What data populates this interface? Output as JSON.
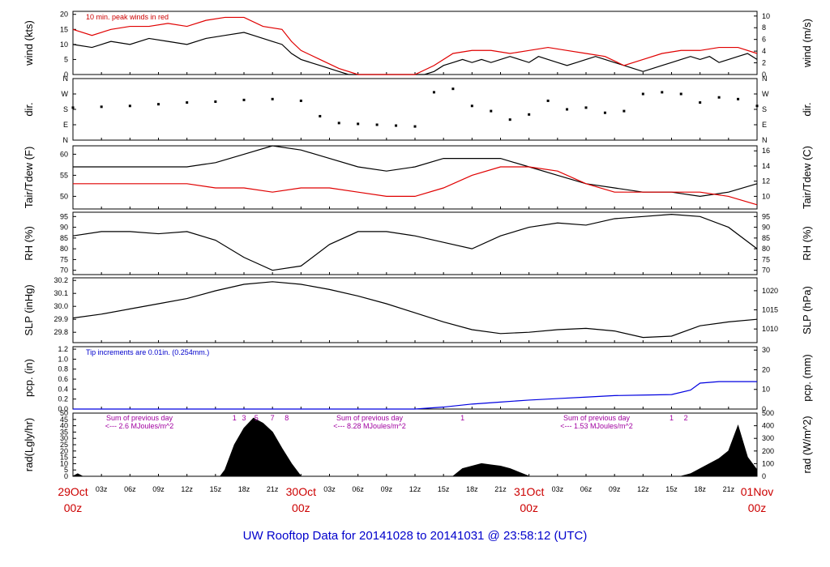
{
  "title": "UW Rooftop Data for 20141028  to  20141031 @ 23:58:12  (UTC)",
  "colors": {
    "frame": "#000000",
    "red": "#e00000",
    "blue": "#0000e0",
    "purple": "#a000a0",
    "fill": "#000000"
  },
  "chart_data": [
    {
      "id": "wind",
      "type": "line",
      "ylabel": "wind (kts)",
      "ylabel_right": "wind (m/s)",
      "ylim": [
        0,
        21
      ],
      "yticks": [
        0,
        5,
        10,
        15,
        20
      ],
      "yticks_right": [
        0,
        2,
        4,
        6,
        8,
        10
      ],
      "right_scale": 0.5144,
      "annotation": "10 min. peak winds in red",
      "series": [
        {
          "name": "wind",
          "color": "#000000",
          "x": [
            0,
            2,
            4,
            6,
            8,
            10,
            12,
            14,
            16,
            18,
            19,
            20,
            21,
            22,
            23,
            24,
            25,
            26,
            27,
            28,
            29,
            30,
            31,
            32,
            33,
            34,
            35,
            36,
            37,
            38,
            39,
            40,
            41,
            42,
            43,
            44,
            45,
            46,
            47,
            48,
            49,
            50,
            51,
            52,
            53,
            54,
            55,
            56,
            57,
            58,
            59,
            60,
            61,
            62,
            63,
            64,
            65,
            66,
            67,
            68,
            69,
            70,
            71,
            72
          ],
          "y": [
            10,
            9,
            11,
            10,
            12,
            11,
            10,
            12,
            13,
            14,
            13,
            12,
            11,
            10,
            7,
            5,
            4,
            3,
            2,
            1,
            0,
            0,
            0,
            0,
            0,
            0,
            0,
            0,
            0,
            1,
            3,
            4,
            5,
            4,
            5,
            4,
            5,
            6,
            5,
            4,
            6,
            5,
            4,
            3,
            4,
            5,
            6,
            5,
            4,
            3,
            2,
            1,
            2,
            3,
            4,
            5,
            6,
            5,
            6,
            4,
            5,
            6,
            7,
            5
          ]
        },
        {
          "name": "peak",
          "color": "#e00000",
          "x": [
            0,
            2,
            4,
            6,
            8,
            10,
            12,
            14,
            16,
            18,
            20,
            22,
            23,
            24,
            26,
            28,
            30,
            32,
            34,
            36,
            38,
            40,
            42,
            44,
            46,
            48,
            50,
            52,
            54,
            56,
            58,
            60,
            62,
            64,
            66,
            68,
            70,
            72
          ],
          "y": [
            15,
            13,
            15,
            16,
            16,
            17,
            16,
            18,
            19,
            19,
            16,
            15,
            11,
            8,
            5,
            2,
            0,
            0,
            0,
            0,
            3,
            7,
            8,
            8,
            7,
            8,
            9,
            8,
            7,
            6,
            3,
            5,
            7,
            8,
            8,
            9,
            9,
            7
          ]
        }
      ]
    },
    {
      "id": "dir",
      "type": "scatter",
      "ylabel": "dir.",
      "ylabel_right": "dir.",
      "ylim": [
        0,
        360
      ],
      "ytick_labels": [
        "N",
        "E",
        "S",
        "W",
        "N"
      ],
      "series": [
        {
          "name": "direction",
          "color": "#000000",
          "x": [
            0,
            3,
            6,
            9,
            12,
            15,
            18,
            21,
            24,
            26,
            28,
            30,
            32,
            34,
            36,
            38,
            40,
            42,
            44,
            46,
            48,
            50,
            52,
            54,
            56,
            58,
            60,
            62,
            64,
            66,
            68,
            70,
            72
          ],
          "y": [
            190,
            195,
            200,
            210,
            220,
            225,
            235,
            240,
            230,
            140,
            100,
            95,
            90,
            85,
            80,
            280,
            300,
            200,
            170,
            120,
            150,
            230,
            180,
            190,
            160,
            170,
            270,
            280,
            270,
            220,
            250,
            240,
            200
          ]
        }
      ]
    },
    {
      "id": "temp",
      "type": "line",
      "ylabel": "Tair/Tdew (F)",
      "ylabel_right": "Tair/Tdew (C)",
      "ylim": [
        47,
        62
      ],
      "yticks": [
        50,
        55,
        60
      ],
      "yticks_right": [
        10,
        12,
        14,
        16
      ],
      "series": [
        {
          "name": "Tair",
          "color": "#000000",
          "x": [
            0,
            3,
            6,
            9,
            12,
            15,
            18,
            21,
            24,
            27,
            30,
            33,
            36,
            39,
            42,
            45,
            48,
            51,
            54,
            57,
            60,
            63,
            66,
            69,
            72
          ],
          "y": [
            57,
            57,
            57,
            57,
            57,
            58,
            60,
            62,
            61,
            59,
            57,
            56,
            57,
            59,
            59,
            59,
            57,
            55,
            53,
            52,
            51,
            51,
            50,
            51,
            53
          ]
        },
        {
          "name": "Tdew",
          "color": "#e00000",
          "x": [
            0,
            3,
            6,
            9,
            12,
            15,
            18,
            21,
            24,
            27,
            30,
            33,
            36,
            39,
            42,
            45,
            48,
            51,
            54,
            57,
            60,
            63,
            66,
            69,
            72
          ],
          "y": [
            53,
            53,
            53,
            53,
            53,
            52,
            52,
            51,
            52,
            52,
            51,
            50,
            50,
            52,
            55,
            57,
            57,
            56,
            53,
            51,
            51,
            51,
            51,
            50,
            48
          ]
        }
      ]
    },
    {
      "id": "rh",
      "type": "line",
      "ylabel": "RH (%)",
      "ylabel_right": "RH (%)",
      "ylim": [
        68,
        97
      ],
      "yticks": [
        70,
        75,
        80,
        85,
        90,
        95
      ],
      "series": [
        {
          "name": "RH",
          "color": "#000000",
          "x": [
            0,
            3,
            6,
            9,
            12,
            15,
            18,
            21,
            24,
            27,
            30,
            33,
            36,
            39,
            42,
            45,
            48,
            51,
            54,
            57,
            60,
            63,
            66,
            69,
            72
          ],
          "y": [
            86,
            88,
            88,
            87,
            88,
            84,
            76,
            70,
            72,
            82,
            88,
            88,
            86,
            83,
            80,
            86,
            90,
            92,
            91,
            94,
            95,
            96,
            95,
            90,
            80
          ]
        }
      ]
    },
    {
      "id": "slp",
      "type": "line",
      "ylabel": "SLP (inHg)",
      "ylabel_right": "SLP (hPa)",
      "ylim": [
        29.72,
        30.22
      ],
      "yticks": [
        29.8,
        29.9,
        30.0,
        30.1,
        30.2
      ],
      "yticks_right": [
        1010,
        1015,
        1020
      ],
      "series": [
        {
          "name": "SLP",
          "color": "#000000",
          "x": [
            0,
            3,
            6,
            9,
            12,
            15,
            18,
            21,
            24,
            27,
            30,
            33,
            36,
            39,
            42,
            45,
            48,
            51,
            54,
            57,
            60,
            63,
            66,
            69,
            72
          ],
          "y": [
            29.91,
            29.94,
            29.98,
            30.02,
            30.06,
            30.12,
            30.17,
            30.19,
            30.17,
            30.13,
            30.08,
            30.02,
            29.95,
            29.88,
            29.82,
            29.79,
            29.8,
            29.82,
            29.83,
            29.81,
            29.76,
            29.77,
            29.85,
            29.88,
            29.9
          ]
        }
      ]
    },
    {
      "id": "pcp",
      "type": "line",
      "ylabel": "pcp. (in)",
      "ylabel_right": "pcp. (mm)",
      "ylim": [
        0,
        1.25
      ],
      "yticks": [
        0,
        0.2,
        0.4,
        0.6,
        0.8,
        1.0,
        1.2
      ],
      "yticks_right": [
        0,
        10,
        20,
        30
      ],
      "annotation": "Tip increments are 0.01in. (0.254mm.)",
      "series": [
        {
          "name": "pcp",
          "color": "#0000e0",
          "x": [
            0,
            36,
            39,
            42,
            45,
            48,
            51,
            54,
            57,
            60,
            63,
            65,
            66,
            68,
            72
          ],
          "y": [
            0,
            0,
            0.04,
            0.1,
            0.14,
            0.18,
            0.21,
            0.24,
            0.27,
            0.28,
            0.29,
            0.38,
            0.52,
            0.55,
            0.55
          ]
        }
      ]
    },
    {
      "id": "rad",
      "type": "area",
      "ylabel": "rad(Lgly/hr)",
      "ylabel_right": "rad (W/m^2)",
      "ylim": [
        0,
        50
      ],
      "yticks": [
        0,
        5,
        10,
        15,
        20,
        25,
        30,
        35,
        40,
        45,
        50
      ],
      "yticks_right": [
        0,
        100,
        200,
        300,
        400,
        500
      ],
      "hour_marks": [
        "1",
        "3",
        "5",
        "7",
        "8",
        "1",
        "1",
        "2"
      ],
      "daily_sums": [
        {
          "label": "Sum of previous day",
          "value": "<--- 2.6 MJoules/m^2"
        },
        {
          "label": "Sum of previous day",
          "value": "<--- 8.28 MJoules/m^2"
        },
        {
          "label": "Sum of previous day",
          "value": "<--- 1.53 MJoules/m^2"
        }
      ],
      "series": [
        {
          "name": "radiation",
          "color": "#000000",
          "x": [
            0,
            0.5,
            1,
            15.5,
            16,
            17,
            18,
            19,
            20,
            21,
            22,
            23,
            24,
            40,
            41,
            42,
            43,
            44,
            45,
            46,
            47,
            48,
            64,
            65,
            66,
            67,
            68,
            69,
            70,
            71,
            72
          ],
          "y": [
            0,
            2,
            0,
            0,
            5,
            25,
            38,
            46,
            42,
            35,
            22,
            10,
            0,
            0,
            6,
            8,
            10,
            9,
            8,
            6,
            3,
            0,
            0,
            2,
            6,
            10,
            14,
            20,
            40,
            15,
            5
          ]
        }
      ]
    }
  ],
  "xaxis": {
    "hours": 72,
    "tick_labels": [
      "03z",
      "06z",
      "09z",
      "12z",
      "15z",
      "18z",
      "21z",
      "03z",
      "06z",
      "09z",
      "12z",
      "15z",
      "18z",
      "21z",
      "03z",
      "06z",
      "09z",
      "12z",
      "15z",
      "18z",
      "21z"
    ],
    "day_labels": [
      {
        "date": "29Oct",
        "time": "00z"
      },
      {
        "date": "30Oct",
        "time": "00z"
      },
      {
        "date": "31Oct",
        "time": "00z"
      },
      {
        "date": "01Nov",
        "time": "00z"
      }
    ]
  }
}
